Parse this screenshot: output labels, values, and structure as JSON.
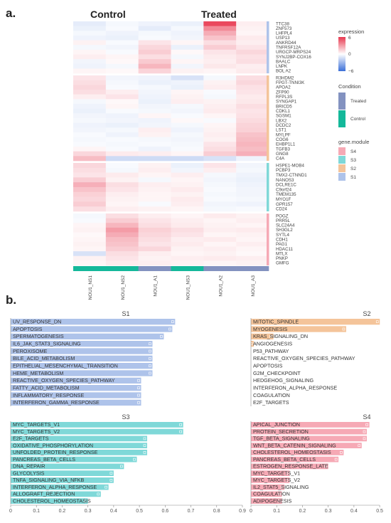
{
  "panel_a": {
    "label": "a.",
    "group_labels": [
      "Control",
      "Treated"
    ],
    "legend": {
      "expression_title": "expression",
      "expression_ticks": [
        "6",
        "0",
        "−6"
      ],
      "condition_title": "Condition",
      "condition_items": [
        "Treated",
        "Control"
      ],
      "module_title": "gene.module",
      "module_items": [
        "S4",
        "S3",
        "S2",
        "S1"
      ]
    }
  },
  "panel_b": {
    "label": "b."
  },
  "colors": {
    "high": "#e8384f",
    "mid": "#ffffff",
    "low": "#3b6fd8",
    "control": "#14b89a",
    "treated": "#8392c0",
    "S1": "#aec3ea",
    "S2": "#f4c49a",
    "S3": "#7fd8d8",
    "S4": "#f6a9b5",
    "bar_S1": "#aec3ea",
    "bar_S2": "#f4c49a",
    "bar_S3": "#7fd8d8",
    "bar_S4": "#f6a9b5"
  },
  "chart_data": [
    {
      "type": "heatmap",
      "columns": [
        "NOU1_NS1",
        "NOU1_NS2",
        "NOU1_A1",
        "NOU1_NS3",
        "NOU1_A2",
        "NOU1_A3"
      ],
      "column_condition": [
        "Control",
        "Control",
        "Treated",
        "Control",
        "Treated",
        "Treated"
      ],
      "color_scale": {
        "min": -6,
        "max": 6
      },
      "row_blocks": [
        {
          "module": "S1",
          "genes": [
            "TTC38",
            "ZNF573",
            "LHFPL4",
            "USP13",
            "ANKRD44",
            "TNFRSF12A",
            "URGCP-MRPS24",
            "SYNJ2BP-COX16",
            "BAALC",
            "LNPK",
            "BOL A2"
          ],
          "values": [
            [
              -0.8,
              -0.3,
              -0.5,
              -0.6,
              5.5,
              0.5
            ],
            [
              -0.6,
              -0.2,
              -0.8,
              -0.3,
              3.5,
              0.4
            ],
            [
              -0.3,
              -0.5,
              -0.3,
              -0.5,
              2.5,
              0.3
            ],
            [
              -0.5,
              -0.6,
              -0.2,
              -0.4,
              1.8,
              0.6
            ],
            [
              0.4,
              -0.2,
              0.8,
              0.3,
              1.0,
              0.5
            ],
            [
              -0.3,
              -0.4,
              1.2,
              -0.6,
              1.5,
              0.8
            ],
            [
              0.3,
              -0.2,
              1.5,
              0.2,
              0.8,
              1.2
            ],
            [
              0.5,
              0.3,
              1.0,
              -0.3,
              0.6,
              0.9
            ],
            [
              -0.4,
              0.2,
              1.6,
              0.3,
              0.5,
              1.0
            ],
            [
              -0.5,
              -0.3,
              2.2,
              -0.4,
              0.7,
              0.5
            ],
            [
              0.3,
              0.2,
              1.3,
              0.4,
              0.3,
              0.6
            ]
          ]
        },
        {
          "module": "S2",
          "genes": [
            "R3HDM2",
            "FPGT-TNNI3K",
            "APOA2",
            "ZFP90",
            "RFPL3S",
            "SYNGAP1",
            "BRICD5",
            "CDKL1",
            "SGSM1",
            "LBX2",
            "DCDC2",
            "LST1",
            "MYLPF",
            "COG6",
            "EHBP1L1",
            "TGFB3",
            "GNG8",
            "C4A"
          ],
          "values": [
            [
              0.8,
              -0.4,
              -0.5,
              -1.2,
              -0.3,
              1.0
            ],
            [
              1.0,
              -0.3,
              -0.6,
              -0.5,
              0.4,
              1.2
            ],
            [
              1.2,
              -0.2,
              -0.3,
              -0.6,
              0.5,
              0.9
            ],
            [
              1.0,
              0.5,
              -0.4,
              0.3,
              -0.2,
              0.8
            ],
            [
              0.5,
              0.8,
              -0.5,
              0.4,
              -0.3,
              0.6
            ],
            [
              -0.3,
              0.2,
              -0.6,
              0.5,
              0.4,
              0.7
            ],
            [
              -0.5,
              0.3,
              -0.4,
              -0.3,
              0.5,
              1.0
            ],
            [
              -0.6,
              -0.2,
              -0.3,
              -0.4,
              0.6,
              0.8
            ],
            [
              -0.4,
              -0.5,
              0.3,
              -0.2,
              0.3,
              0.9
            ],
            [
              -0.3,
              -0.4,
              -0.5,
              0.2,
              -0.2,
              1.1
            ],
            [
              -0.5,
              -0.6,
              -0.4,
              -0.3,
              0.3,
              1.3
            ],
            [
              -0.4,
              -0.3,
              0.5,
              -0.5,
              0.4,
              1.4
            ],
            [
              -0.2,
              -0.5,
              0.4,
              -0.3,
              0.5,
              1.8
            ],
            [
              -0.3,
              -0.2,
              -0.3,
              -0.4,
              0.4,
              2.0
            ],
            [
              -0.2,
              -0.3,
              -0.2,
              -0.3,
              0.8,
              2.2
            ],
            [
              0.3,
              -0.2,
              -0.5,
              -0.2,
              1.0,
              2.0
            ],
            [
              1.2,
              0.6,
              0.5,
              0.3,
              1.5,
              2.4
            ],
            [
              2.0,
              -1.5,
              -1.5,
              -1.5,
              -1.2,
              -0.5
            ]
          ]
        },
        {
          "module": "S3",
          "genes": [
            "HSPE1-MOB4",
            "PCBP3",
            "TMX2-CTNND1",
            "NANOS3",
            "DCLRE1C",
            "C9orf24",
            "TMEM135",
            "MYO1F",
            "GPR157",
            "CD24"
          ],
          "values": [
            [
              1.2,
              -0.2,
              0.4,
              -0.6,
              0.8,
              -0.4
            ],
            [
              1.0,
              -0.3,
              0.5,
              -0.4,
              0.5,
              -0.3
            ],
            [
              0.8,
              0.6,
              0.3,
              0.5,
              -0.3,
              -0.5
            ],
            [
              1.5,
              0.4,
              -0.3,
              0.3,
              -0.4,
              -0.6
            ],
            [
              2.4,
              1.0,
              0.5,
              0.4,
              -0.3,
              -0.5
            ],
            [
              1.8,
              0.8,
              0.4,
              0.6,
              -0.2,
              -0.4
            ],
            [
              1.4,
              0.5,
              0.3,
              0.4,
              -0.3,
              -0.4
            ],
            [
              1.2,
              0.4,
              0.3,
              0.6,
              -0.2,
              -0.3
            ],
            [
              1.5,
              0.3,
              -0.2,
              0.5,
              -0.4,
              -0.5
            ],
            [
              1.0,
              0.5,
              0.4,
              0.3,
              -0.3,
              -0.2
            ]
          ]
        },
        {
          "module": "S4",
          "genes": [
            "POGZ",
            "PRR5L",
            "SLC24A4",
            "SH3GL2",
            "SYTL4",
            "CDH1",
            "PAG1",
            "HDAC11",
            "MTLX",
            "PNKP",
            "GMFG"
          ],
          "values": [
            [
              -0.3,
              1.0,
              0.5,
              0.3,
              0.6,
              0.4
            ],
            [
              -0.2,
              1.5,
              0.8,
              0.5,
              0.3,
              0.5
            ],
            [
              0.3,
              2.2,
              1.0,
              0.6,
              0.4,
              0.3
            ],
            [
              0.4,
              3.0,
              1.4,
              1.0,
              0.5,
              0.6
            ],
            [
              0.2,
              2.5,
              1.2,
              0.8,
              0.3,
              0.4
            ],
            [
              0.3,
              2.0,
              1.0,
              0.5,
              0.6,
              0.3
            ],
            [
              0.4,
              1.8,
              0.8,
              0.6,
              0.3,
              0.5
            ],
            [
              0.3,
              1.5,
              1.2,
              0.4,
              0.5,
              0.3
            ],
            [
              -1.2,
              1.0,
              0.5,
              0.3,
              0.4,
              0.2
            ],
            [
              0.4,
              0.8,
              0.4,
              0.5,
              0.6,
              0.5
            ],
            [
              0.3,
              0.6,
              0.5,
              0.4,
              0.3,
              0.4
            ]
          ]
        }
      ]
    },
    {
      "type": "bar",
      "orientation": "horizontal",
      "title": "S1",
      "module": "S1",
      "xlim": [
        0,
        0.9
      ],
      "categories": [
        "UV_RESPONSE_DN",
        "APOPTOSIS",
        "SPERMATOGENESIS",
        "IL6_JAK_STAT3_SIGNALING",
        "PEROXISOME",
        "BILE_ACID_METABOLISM",
        "EPITHELIAL_MESENCHYMAL_TRANSITION",
        "HEME_METABOLISM",
        "REACTIVE_OXYGEN_SPECIES_PATHWAY",
        "FATTY_ACID_METABOLISM",
        "INFLAMMATORY_RESPONSE",
        "INTERFERON_GAMMA_RESPONSE"
      ],
      "values": [
        0.58,
        0.57,
        0.54,
        0.5,
        0.5,
        0.5,
        0.5,
        0.5,
        0.46,
        0.46,
        0.46,
        0.46
      ]
    },
    {
      "type": "bar",
      "orientation": "horizontal",
      "title": "S2",
      "module": "S2",
      "xlim": [
        0,
        0.55
      ],
      "categories": [
        "MITOTIC_SPINDLE",
        "MYOGENESIS",
        "KRAS_SIGNALING_DN",
        "ANGIOGENESIS",
        "P53_PATHWAY",
        "REACTIVE_OXYGEN_SPECIES_PATHWAY",
        "APOPTOSIS",
        "G2M_CHECKPOINT",
        "HEDGEHOG_SIGNALING",
        "INTERFERON_ALPHA_RESPONSE",
        "COAGULATION",
        "E2F_TARGETS"
      ],
      "values": [
        0.46,
        0.34,
        0.08,
        0.01,
        0,
        0,
        0,
        0,
        0,
        0,
        0,
        0
      ]
    },
    {
      "type": "bar",
      "orientation": "horizontal",
      "title": "S3",
      "module": "S3",
      "xlim": [
        0,
        0.9
      ],
      "ticks": [
        "0",
        "0.1",
        "0.2",
        "0.3",
        "0.4",
        "0.5",
        "0.6",
        "0.7",
        "0.8",
        "0.9"
      ],
      "categories": [
        "MYC_TARGETS_V1",
        "MYC_TARGETS_V2",
        "E2F_TARGETS",
        "OXIDATIVE_PHOSPHORYLATION",
        "UNFOLDED_PROTEIN_RESPONSE",
        "PANCREAS_BETA_CELLS",
        "DNA_REPAIR",
        "GLYCOLYSIS",
        "TNFA_SIGNALING_VIA_NFKB",
        "INTERFERON_ALPHA_RESPONSE",
        "ALLOGRAFT_REJECTION",
        "CHOLESTEROL_HOMEOSTASIS"
      ],
      "values": [
        0.67,
        0.67,
        0.53,
        0.53,
        0.53,
        0.49,
        0.44,
        0.4,
        0.4,
        0.38,
        0.35,
        0.3
      ]
    },
    {
      "type": "bar",
      "orientation": "horizontal",
      "title": "S4",
      "module": "S4",
      "xlim": [
        0,
        0.5
      ],
      "ticks": [
        "0",
        "0.1",
        "0.2",
        "0.3",
        "0.4",
        "0.5"
      ],
      "categories": [
        "APICAL_JUNCTION",
        "PROTEIN_SECRETION",
        "TGF_BETA_SIGNALING",
        "WNT_BETA_CATENIN_SIGNALING",
        "CHOLESTEROL_HOMEOSTASIS",
        "PANCREAS_BETA_CELLS",
        "ESTROGEN_RESPONSE_LATE",
        "MYC_TARGETS_V1",
        "MYC_TARGETS_V2",
        "IL2_STAT5_SIGNALING",
        "COAGULATION",
        "ADIPOGENESIS"
      ],
      "values": [
        0.46,
        0.45,
        0.45,
        0.43,
        0.36,
        0.34,
        0.3,
        0.15,
        0.15,
        0.13,
        0.12,
        0.12
      ]
    }
  ]
}
